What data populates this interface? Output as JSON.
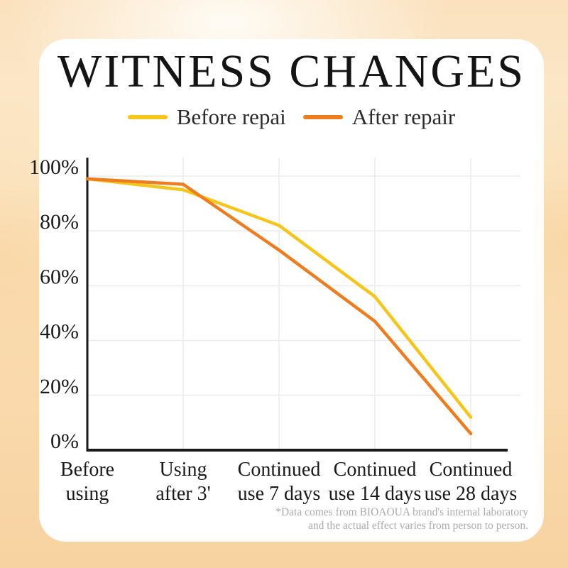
{
  "page": {
    "title": "WITNESS CHANGES",
    "footnote": {
      "line1": "*Data comes from BIOAOUA brand's internal laboratory",
      "line2": "and the actual effect varies from person to person."
    }
  },
  "chart_data": {
    "type": "line",
    "title": "WITNESS CHANGES",
    "categories": [
      "Before using",
      "Using after 3'",
      "Continued use 7 days",
      "Continued use 14 days",
      "Continued use 28 days"
    ],
    "x_tick_lines": [
      [
        "Before",
        "using"
      ],
      [
        "Using",
        "after 3'"
      ],
      [
        "Continued",
        "use 7 days"
      ],
      [
        "Continued",
        "use 14 days"
      ],
      [
        "Continued",
        "use 28 days"
      ]
    ],
    "series": [
      {
        "name": "Before repai",
        "color": "#F6C51A",
        "values": [
          99,
          95,
          82,
          56,
          12
        ]
      },
      {
        "name": "After repair",
        "color": "#EE7D1F",
        "values": [
          99,
          97,
          73,
          47,
          6
        ]
      }
    ],
    "y_ticks": [
      "100%",
      "80%",
      "60%",
      "40%",
      "20%",
      "0%"
    ],
    "y_tick_values": [
      100,
      80,
      60,
      40,
      20,
      0
    ],
    "ylim": [
      0,
      105
    ],
    "grid": true,
    "legend_position": "top"
  },
  "colors": {
    "axis": "#1a1a1a",
    "gridline": "#ebebeb",
    "tick_label": "#1a1a1a",
    "footnote": "#ababab",
    "card": "#ffffff",
    "background_peach": "#f9d7a8"
  }
}
